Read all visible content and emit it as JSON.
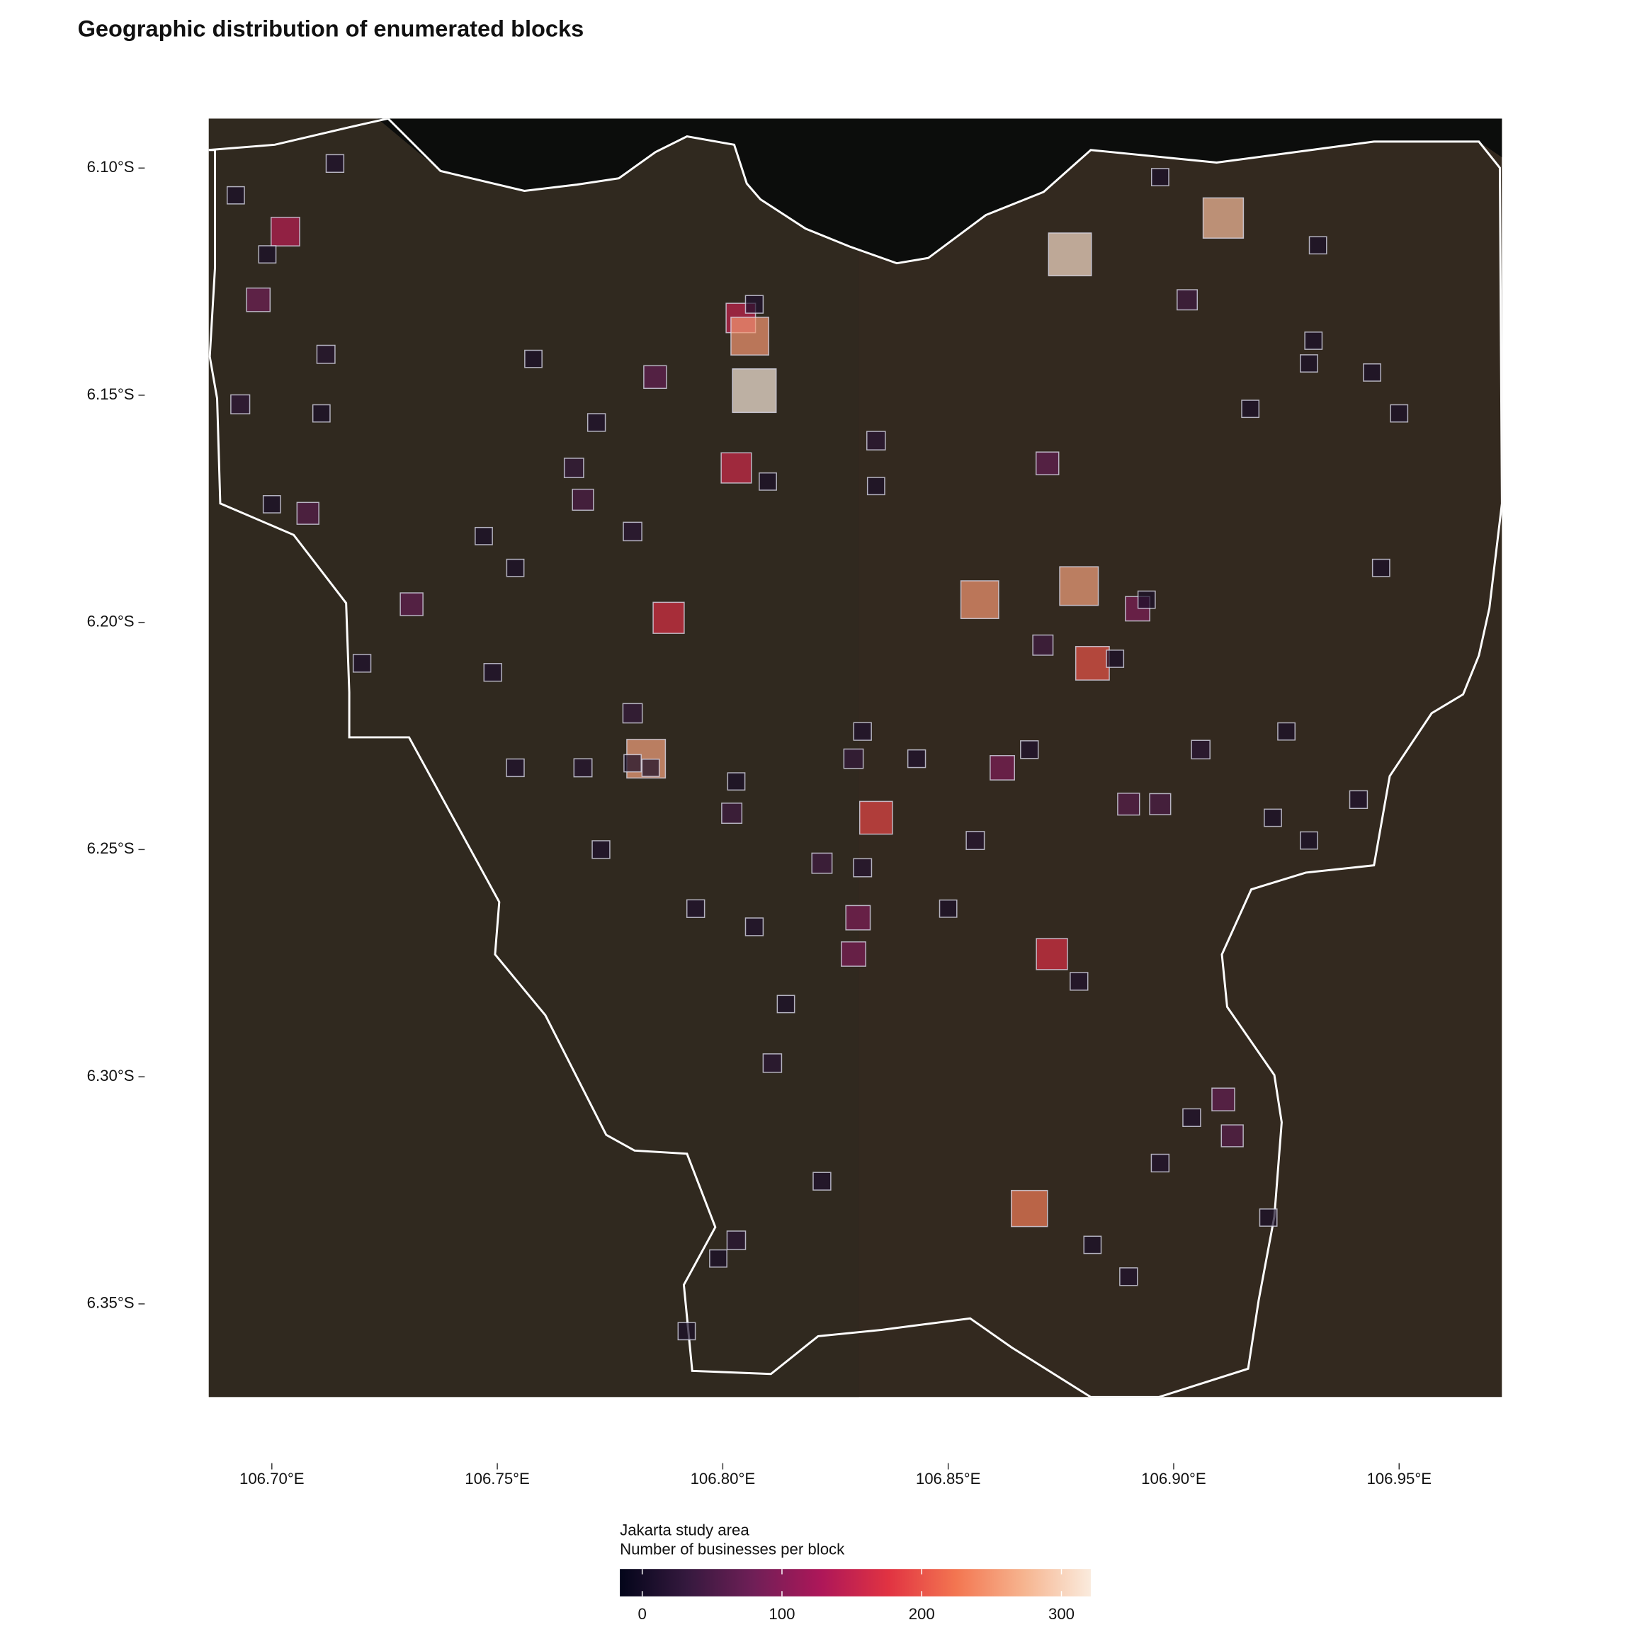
{
  "chart_data": {
    "type": "map",
    "title": "Geographic distribution of enumerated blocks",
    "boundary_label": "Jakarta study area",
    "colorbar_title": "Number of businesses per block",
    "x": [
      106.714,
      106.692,
      106.703,
      106.699,
      106.697,
      106.712,
      106.758,
      106.693,
      106.711,
      106.804,
      106.806,
      106.807,
      106.785,
      106.807,
      106.772,
      106.834,
      106.767,
      106.803,
      106.81,
      106.834,
      106.769,
      106.872,
      106.7,
      106.708,
      106.78,
      106.747,
      106.754,
      106.731,
      106.788,
      106.857,
      106.879,
      106.892,
      106.894,
      106.871,
      106.882,
      106.887,
      106.72,
      106.749,
      106.78,
      106.783,
      106.78,
      106.784,
      106.754,
      106.769,
      106.803,
      106.802,
      106.831,
      106.829,
      106.843,
      106.862,
      106.868,
      106.906,
      106.925,
      106.834,
      106.89,
      106.897,
      106.922,
      106.941,
      106.93,
      106.856,
      106.773,
      106.822,
      106.831,
      106.794,
      106.85,
      106.83,
      106.807,
      106.829,
      106.873,
      106.879,
      106.814,
      106.811,
      106.911,
      106.904,
      106.913,
      106.897,
      106.822,
      106.868,
      106.921,
      106.803,
      106.882,
      106.799,
      106.89,
      106.792,
      106.877,
      106.911,
      106.903,
      106.897,
      106.932,
      106.931,
      106.93,
      106.944,
      106.917,
      106.95,
      106.946
    ],
    "y": [
      6.099,
      6.106,
      6.114,
      6.119,
      6.129,
      6.141,
      6.142,
      6.152,
      6.154,
      6.133,
      6.137,
      6.13,
      6.146,
      6.149,
      6.156,
      6.16,
      6.166,
      6.166,
      6.169,
      6.17,
      6.173,
      6.165,
      6.174,
      6.176,
      6.18,
      6.181,
      6.188,
      6.196,
      6.199,
      6.195,
      6.192,
      6.197,
      6.195,
      6.205,
      6.209,
      6.208,
      6.209,
      6.211,
      6.22,
      6.23,
      6.231,
      6.232,
      6.232,
      6.232,
      6.235,
      6.242,
      6.224,
      6.23,
      6.23,
      6.232,
      6.228,
      6.228,
      6.224,
      6.243,
      6.24,
      6.24,
      6.243,
      6.239,
      6.248,
      6.248,
      6.25,
      6.253,
      6.254,
      6.263,
      6.263,
      6.265,
      6.267,
      6.273,
      6.273,
      6.279,
      6.284,
      6.297,
      6.305,
      6.309,
      6.313,
      6.319,
      6.323,
      6.329,
      6.331,
      6.336,
      6.337,
      6.34,
      6.344,
      6.356,
      6.119,
      6.111,
      6.129,
      6.102,
      6.117,
      6.138,
      6.143,
      6.145,
      6.153,
      6.154,
      6.188
    ],
    "values": [
      10,
      5,
      140,
      5,
      80,
      15,
      5,
      25,
      5,
      150,
      250,
      10,
      70,
      320,
      10,
      20,
      30,
      160,
      5,
      5,
      50,
      70,
      5,
      60,
      20,
      5,
      5,
      70,
      170,
      250,
      260,
      90,
      5,
      40,
      200,
      5,
      10,
      10,
      30,
      260,
      5,
      5,
      10,
      15,
      5,
      40,
      10,
      30,
      10,
      90,
      10,
      20,
      5,
      190,
      60,
      50,
      5,
      10,
      5,
      15,
      10,
      40,
      15,
      10,
      5,
      90,
      10,
      90,
      170,
      10,
      5,
      20,
      70,
      10,
      60,
      10,
      10,
      230,
      5,
      20,
      5,
      5,
      10,
      5,
      310,
      280,
      40,
      5,
      5,
      5,
      5,
      5,
      5,
      5,
      5
    ],
    "xlim": [
      106.686,
      106.9728
    ],
    "ylim": [
      6.0891,
      6.3705
    ],
    "xticks": [
      {
        "value": 106.7,
        "label": "106.70°E"
      },
      {
        "value": 106.75,
        "label": "106.75°E"
      },
      {
        "value": 106.8,
        "label": "106.80°E"
      },
      {
        "value": 106.85,
        "label": "106.85°E"
      },
      {
        "value": 106.9,
        "label": "106.90°E"
      },
      {
        "value": 106.95,
        "label": "106.95°E"
      }
    ],
    "yticks": [
      {
        "value": 6.1,
        "label": "6.10°S"
      },
      {
        "value": 6.15,
        "label": "6.15°S"
      },
      {
        "value": 6.2,
        "label": "6.20°S"
      },
      {
        "value": 6.25,
        "label": "6.25°S"
      },
      {
        "value": 6.3,
        "label": "6.30°S"
      },
      {
        "value": 6.35,
        "label": "6.35°S"
      }
    ],
    "colors": [
      "#03051a",
      "#35193e",
      "#701f57",
      "#ae1759",
      "#e13342",
      "#f37651",
      "#f6b48f",
      "#faebdd"
    ],
    "color_lim": [
      -16,
      321
    ],
    "color_ticks": [
      0,
      100,
      200,
      300
    ]
  }
}
